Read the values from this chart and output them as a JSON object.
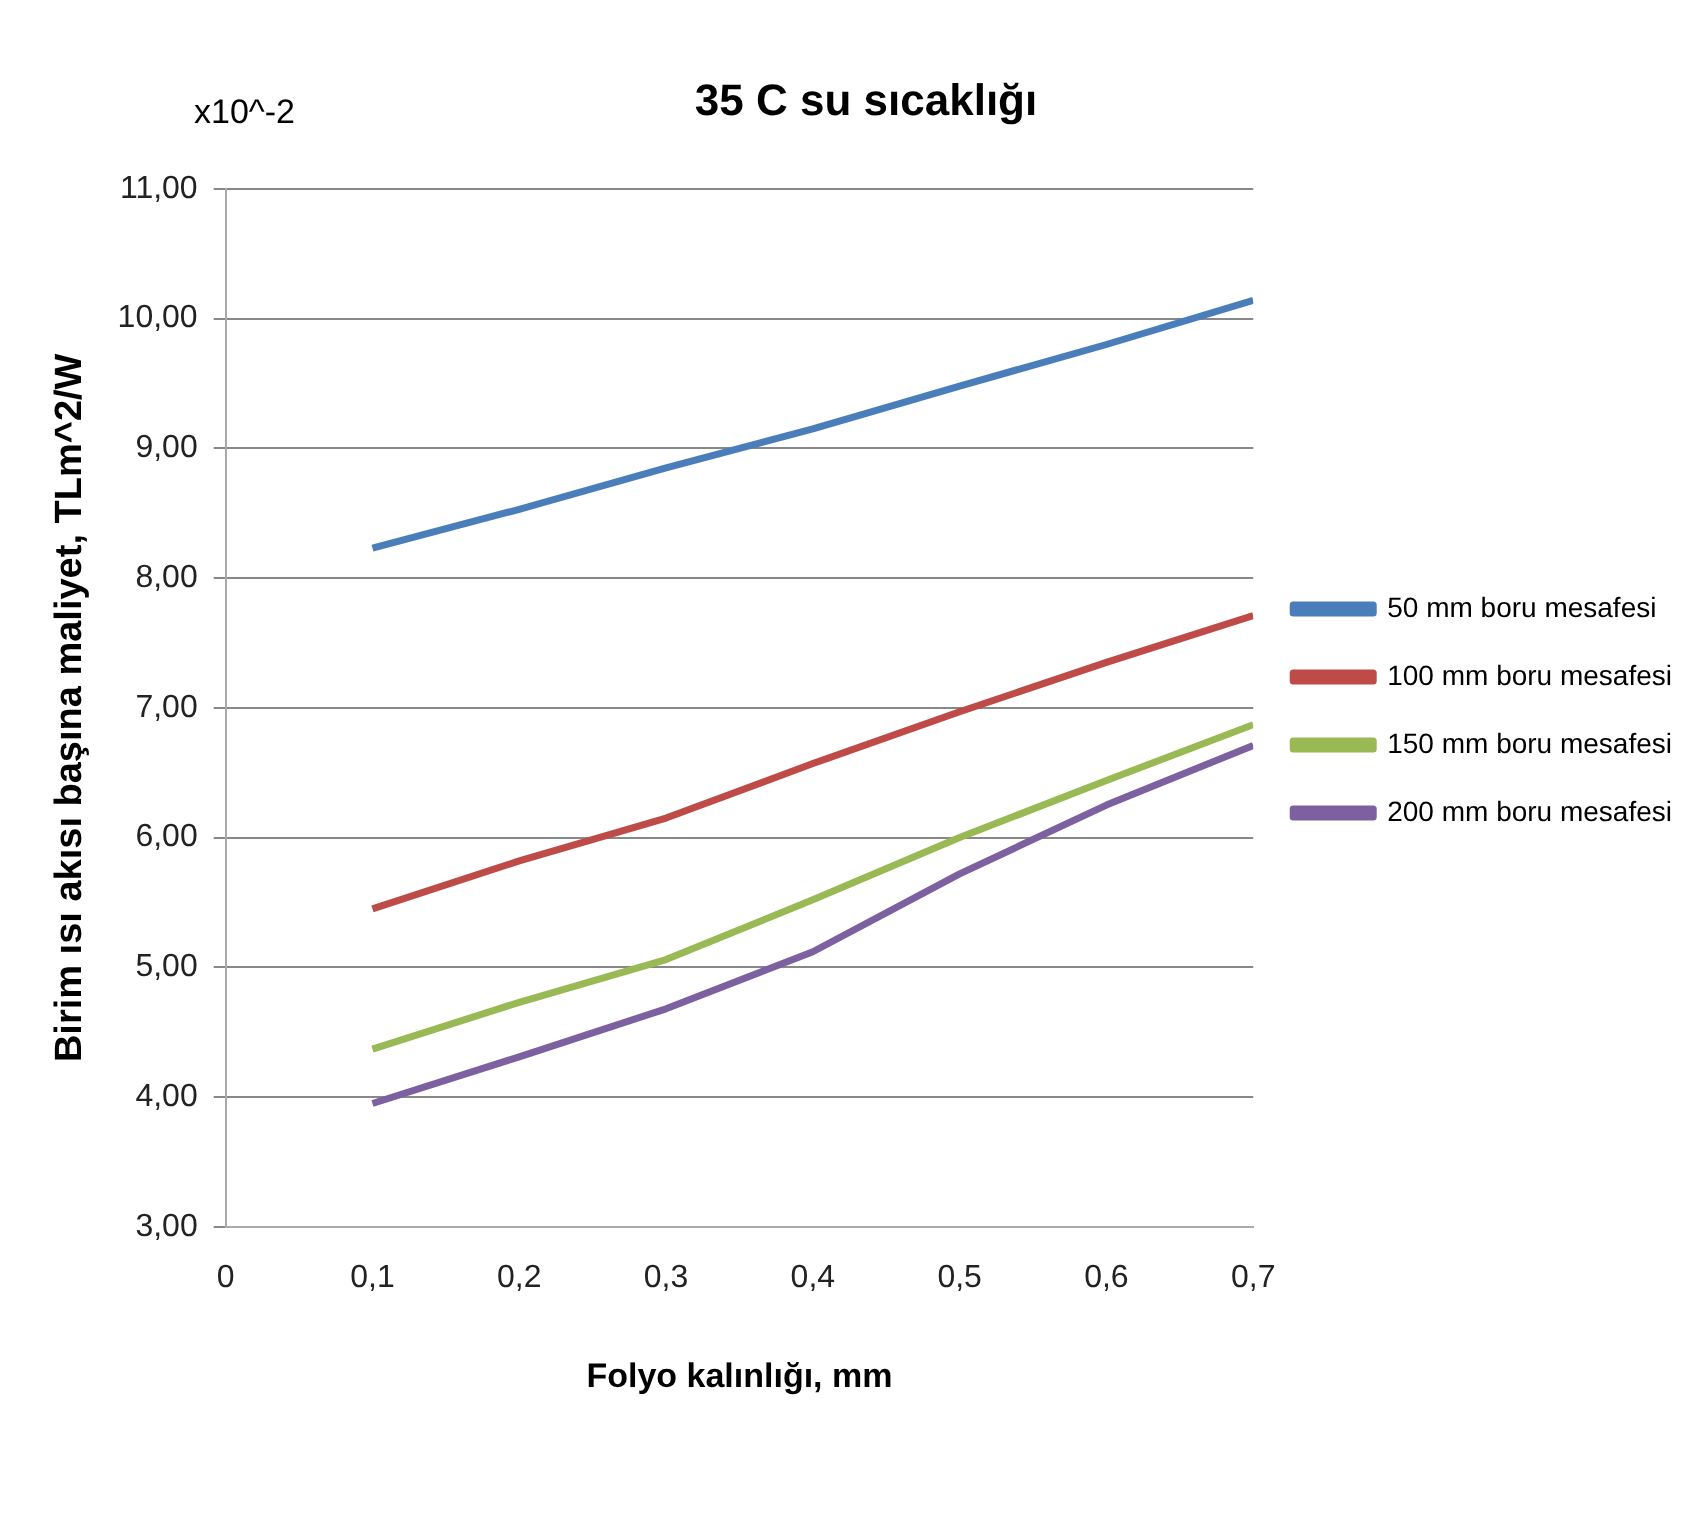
{
  "chart_data": {
    "type": "line",
    "title": "35 C su sıcaklığı",
    "xlabel": "Folyo kalınlığı, mm",
    "ylabel": "Birim ısı akısı başına maliyet, TLm^2/W",
    "annotations": [
      "x10^-2"
    ],
    "x": [
      0.1,
      0.2,
      0.3,
      0.4,
      0.5,
      0.6,
      0.7
    ],
    "series": [
      {
        "name": "50 mm boru mesafesi",
        "color": "#4a7ebb",
        "values": [
          8.23,
          8.53,
          8.85,
          9.15,
          9.48,
          9.8,
          10.14
        ]
      },
      {
        "name": "100 mm boru mesafesi",
        "color": "#be4b48",
        "values": [
          5.45,
          5.82,
          6.15,
          6.57,
          6.97,
          7.35,
          7.71
        ]
      },
      {
        "name": "150 mm boru mesafesi",
        "color": "#98b954",
        "values": [
          4.37,
          4.73,
          5.06,
          5.52,
          6.0,
          6.44,
          6.87
        ]
      },
      {
        "name": "200 mm boru mesafesi",
        "color": "#7d60a0",
        "values": [
          3.95,
          4.31,
          4.68,
          5.12,
          5.72,
          6.25,
          6.71
        ]
      }
    ],
    "xlim": [
      0,
      0.7
    ],
    "xticks": [
      0,
      {
        "value": 0.1,
        "label": "0,1"
      },
      {
        "value": 0.2,
        "label": "0,2"
      },
      {
        "value": 0.3,
        "label": "0,3"
      },
      {
        "value": 0.4,
        "label": "0,4"
      },
      {
        "value": 0.5,
        "label": "0,5"
      },
      {
        "value": 0.6,
        "label": "0,6"
      },
      {
        "value": 0.7,
        "label": "0,7"
      }
    ],
    "ylim": [
      3,
      11
    ],
    "yticks": [
      {
        "value": 3,
        "label": "3,00"
      },
      {
        "value": 4,
        "label": "4,00"
      },
      {
        "value": 5,
        "label": "5,00"
      },
      {
        "value": 6,
        "label": "6,00"
      },
      {
        "value": 7,
        "label": "7,00"
      },
      {
        "value": 8,
        "label": "8,00"
      },
      {
        "value": 9,
        "label": "9,00"
      },
      {
        "value": 10,
        "label": "10,00"
      },
      {
        "value": 11,
        "label": "11,00"
      }
    ],
    "grid": "y",
    "legend": "right",
    "marker": "none",
    "line_style": "solid"
  }
}
